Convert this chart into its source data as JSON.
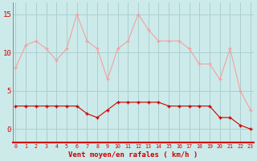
{
  "x": [
    0,
    1,
    2,
    3,
    4,
    5,
    6,
    7,
    8,
    9,
    10,
    11,
    12,
    13,
    14,
    15,
    16,
    17,
    18,
    19,
    20,
    21,
    22,
    23
  ],
  "gusts": [
    8,
    11,
    11.5,
    10.5,
    9,
    10.5,
    15,
    11.5,
    10.5,
    6.5,
    10.5,
    11.5,
    15,
    13,
    11.5,
    11.5,
    11.5,
    10.5,
    8.5,
    8.5,
    6.5,
    10.5,
    5,
    2.5
  ],
  "avg": [
    3,
    3,
    3,
    3,
    3,
    3,
    3,
    2,
    1.5,
    2.5,
    3.5,
    3.5,
    3.5,
    3.5,
    3.5,
    3,
    3,
    3,
    3,
    3,
    1.5,
    1.5,
    0.5,
    0
  ],
  "background_color": "#cdeaea",
  "grid_color": "#aacfcf",
  "line_color_gusts": "#f4a0a0",
  "line_color_avg": "#cc0000",
  "marker": "+",
  "xlabel": "Vent moyen/en rafales ( km/h )",
  "xlabel_color": "#cc0000",
  "yticks": [
    0,
    5,
    10,
    15
  ],
  "xticks": [
    0,
    1,
    2,
    3,
    4,
    5,
    6,
    7,
    8,
    9,
    10,
    11,
    12,
    13,
    14,
    15,
    16,
    17,
    18,
    19,
    20,
    21,
    22,
    23
  ],
  "ylim": [
    -1.8,
    16.5
  ],
  "xlim": [
    -0.3,
    23.3
  ]
}
